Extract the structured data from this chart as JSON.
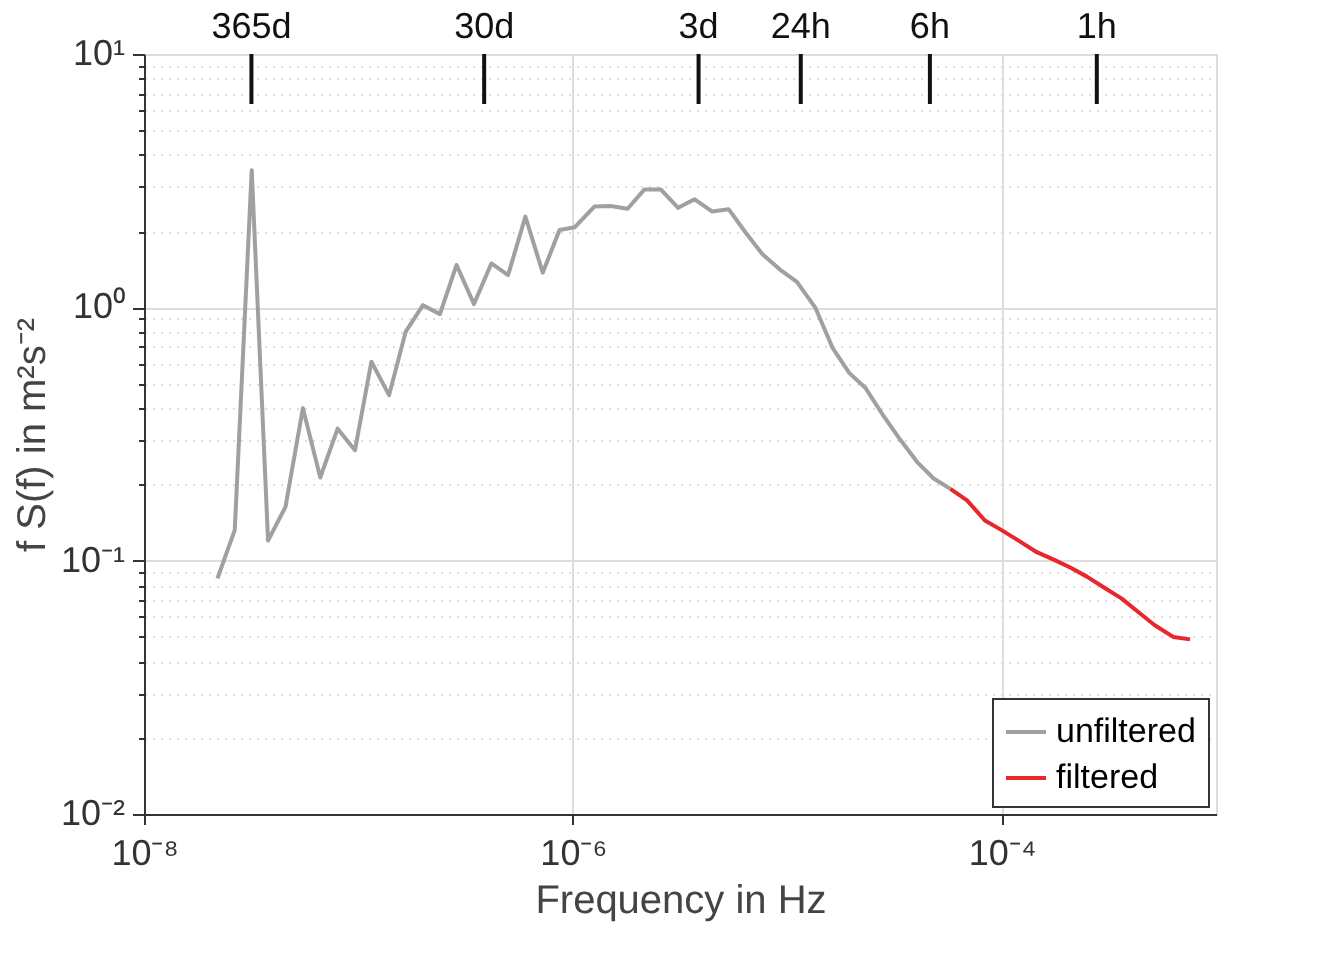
{
  "chart_data": {
    "type": "line",
    "xlabel": "Frequency in Hz",
    "ylabel": "f S(f) in m²s⁻²",
    "log": "xy",
    "grid": true,
    "legend": "bottom right",
    "line_style": "solid",
    "marker": "none",
    "xlim": [
      1e-08,
      0.001
    ],
    "ylim": [
      0.01,
      10
    ],
    "xticks": [
      {
        "value": 1e-08,
        "label": "10⁻⁸"
      },
      {
        "value": 1e-06,
        "label": "10⁻⁶"
      },
      {
        "value": 0.0001,
        "label": "10⁻⁴"
      }
    ],
    "ref_lines": [
      {
        "axis": "x",
        "value": 3.17e-08,
        "label": "365d",
        "color": "#111111"
      },
      {
        "axis": "x",
        "value": 3.86e-07,
        "label": "30d",
        "color": "#111111"
      },
      {
        "axis": "x",
        "value": 3.86e-06,
        "label": "3d",
        "color": "#111111"
      },
      {
        "axis": "x",
        "value": 1.157e-05,
        "label": "24h",
        "color": "#111111"
      },
      {
        "axis": "x",
        "value": 4.63e-05,
        "label": "6h",
        "color": "#111111"
      },
      {
        "axis": "x",
        "value": 0.000278,
        "label": "1h",
        "color": "#111111"
      }
    ],
    "yticks": [
      {
        "value": 0.01,
        "label": "10⁻²"
      },
      {
        "value": 0.02,
        "label": null
      },
      {
        "value": 0.03,
        "label": null
      },
      {
        "value": 0.04,
        "label": null
      },
      {
        "value": 0.05,
        "label": null
      },
      {
        "value": 0.06,
        "label": null
      },
      {
        "value": 0.07,
        "label": null
      },
      {
        "value": 0.08,
        "label": null
      },
      {
        "value": 0.09,
        "label": null
      },
      {
        "value": 0.1,
        "label": "10⁻¹"
      },
      {
        "value": 0.2,
        "label": null
      },
      {
        "value": 0.3,
        "label": null
      },
      {
        "value": 0.4,
        "label": null
      },
      {
        "value": 0.5,
        "label": null
      },
      {
        "value": 0.6,
        "label": null
      },
      {
        "value": 0.7,
        "label": null
      },
      {
        "value": 0.8,
        "label": null
      },
      {
        "value": 0.9,
        "label": null
      },
      {
        "value": 1,
        "label": "10⁰"
      },
      {
        "value": 2,
        "label": null
      },
      {
        "value": 3,
        "label": null
      },
      {
        "value": 4,
        "label": null
      },
      {
        "value": 5,
        "label": null
      },
      {
        "value": 6,
        "label": null
      },
      {
        "value": 7,
        "label": null
      },
      {
        "value": 8,
        "label": null
      },
      {
        "value": 9,
        "label": null
      },
      {
        "value": 10,
        "label": "10¹"
      }
    ],
    "series": [
      {
        "name": "unfiltered",
        "color": "#a0a0a0",
        "x": [
          2.2e-08,
          2.65e-08,
          3.18e-08,
          3.79e-08,
          4.57e-08,
          5.51e-08,
          6.64e-08,
          8e-08,
          9.64e-08,
          1.15e-07,
          1.39e-07,
          1.66e-07,
          2e-07,
          2.4e-07,
          2.87e-07,
          3.46e-07,
          4.17e-07,
          4.99e-07,
          6.01e-07,
          7.24e-07,
          8.67e-07,
          1.02e-06,
          1.26e-06,
          1.5e-06,
          1.8e-06,
          2.16e-06,
          2.57e-06,
          3.1e-06,
          3.7e-06,
          4.46e-06,
          5.33e-06,
          6.41e-06,
          7.67e-06,
          9.25e-06,
          1.11e-05,
          1.35e-05,
          1.63e-05,
          1.95e-05,
          2.32e-05,
          2.8e-05,
          3.37e-05,
          4.04e-05,
          4.82e-05,
          5.77e-05
        ],
        "values": [
          0.085,
          0.132,
          3.48,
          0.12,
          0.163,
          0.4,
          0.213,
          0.332,
          0.273,
          0.61,
          0.45,
          0.8,
          1.02,
          0.94,
          1.47,
          1.03,
          1.49,
          1.34,
          2.28,
          1.37,
          2.02,
          2.07,
          2.5,
          2.51,
          2.45,
          2.92,
          2.92,
          2.47,
          2.67,
          2.39,
          2.44,
          1.97,
          1.62,
          1.41,
          1.26,
          1.0,
          0.69,
          0.55,
          0.48,
          0.375,
          0.3,
          0.245,
          0.211,
          0.192
        ]
      },
      {
        "name": "filtered",
        "color": "#e8262b",
        "x": [
          5.77e-05,
          6.9e-05,
          8.36e-05,
          0.0001,
          0.00012,
          0.000146,
          0.000175,
          0.000209,
          0.00025,
          0.000299,
          0.000362,
          0.000434,
          0.000518,
          0.000632,
          0.000757
        ],
        "values": [
          0.192,
          0.173,
          0.144,
          0.132,
          0.12,
          0.108,
          0.101,
          0.094,
          0.0865,
          0.0785,
          0.071,
          0.0627,
          0.0556,
          0.05,
          0.0489
        ]
      }
    ]
  }
}
